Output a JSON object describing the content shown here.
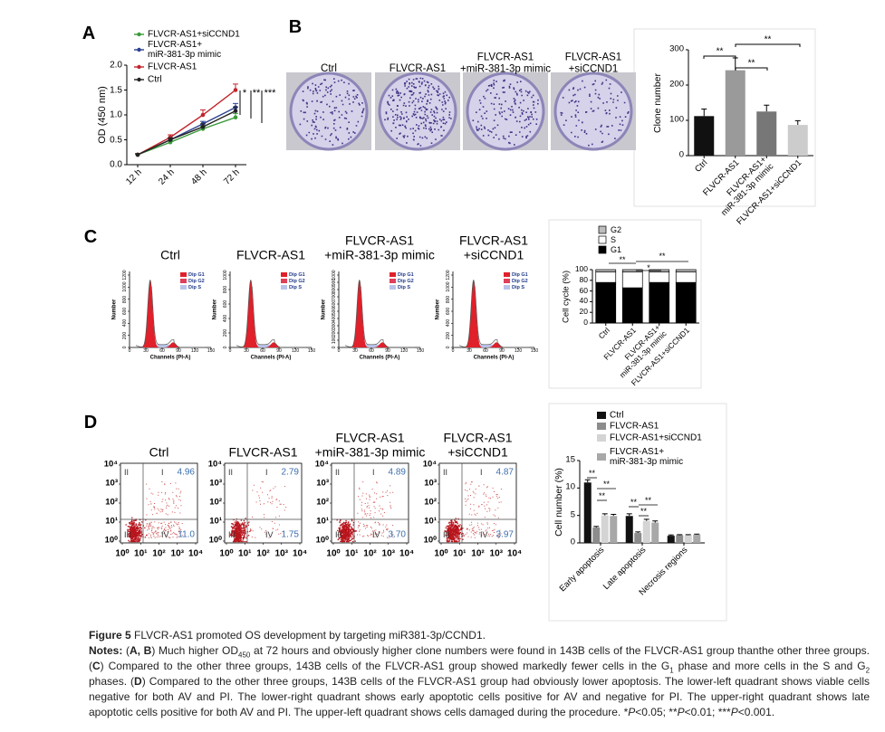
{
  "panel_labels": [
    "A",
    "B",
    "C",
    "D"
  ],
  "chart_data": [
    {
      "type": "line",
      "y_label": "OD (450 nm)",
      "categories": [
        "12 h",
        "24 h",
        "48 h",
        "72 h"
      ],
      "ylim": [
        0,
        2
      ],
      "yticks": [
        {
          "value": 0,
          "label": "0.0"
        },
        0.5,
        {
          "value": 1,
          "label": "1.0"
        },
        1.5,
        {
          "value": 2,
          "label": "2.0"
        }
      ],
      "series": [
        {
          "name": "FLVCR-AS1+siCCND1",
          "color": "#3a9a3a",
          "values": [
            0.2,
            0.45,
            0.72,
            0.95
          ],
          "errors": [
            0.02,
            0.04,
            0.05,
            0.08
          ]
        },
        {
          "name": "FLVCR-AS1+\nmiR-381-3p mimic",
          "color": "#2b3f8f",
          "values": [
            0.2,
            0.5,
            0.82,
            1.15
          ],
          "errors": [
            0.02,
            0.04,
            0.05,
            0.08
          ]
        },
        {
          "name": "FLVCR-AS1",
          "color": "#c0262d",
          "values": [
            0.2,
            0.55,
            1.0,
            1.5
          ],
          "errors": [
            0.02,
            0.05,
            0.1,
            0.12
          ]
        },
        {
          "name": "Ctrl",
          "color": "#222222",
          "values": [
            0.2,
            0.5,
            0.76,
            1.08
          ],
          "errors": [
            0.02,
            0.04,
            0.06,
            0.08
          ]
        }
      ],
      "annotations": [
        "*",
        "**",
        "***"
      ]
    },
    {
      "type": "bar",
      "y_label": "Clone number",
      "categories": [
        "Ctrl",
        "FLVCR-AS1",
        "FLVCR-AS1+\nmiR-381-3p mimic",
        "FLVCR-AS1+siCCND1"
      ],
      "values": [
        112,
        242,
        125,
        87
      ],
      "errors": [
        20,
        35,
        18,
        12
      ],
      "colors": [
        "#111111",
        "#9a9a9a",
        "#777777",
        "#cccccc"
      ],
      "ylim": [
        0,
        300
      ],
      "yticks": [
        0,
        100,
        200,
        300
      ],
      "annotations": [
        "**",
        "**",
        "**"
      ]
    },
    {
      "type": "stacked_bar",
      "y_label": "Cell cycle (%)",
      "categories": [
        "Ctrl",
        "FLVCR-AS1",
        "FLVCR-AS1+\nmiR-381-3p mimic",
        "FLVCR-AS1+siCCND1"
      ],
      "ylim": [
        0,
        100
      ],
      "yticks": [
        0,
        20,
        40,
        60,
        80,
        100
      ],
      "series": [
        {
          "name": "G1",
          "color": "#000000",
          "values": [
            76,
            66,
            76,
            76
          ],
          "errors": [
            7,
            6,
            5,
            6
          ]
        },
        {
          "name": "S",
          "color": "#ffffff",
          "values": [
            20,
            30,
            20,
            20
          ]
        },
        {
          "name": "G2",
          "color": "#bdbdbd",
          "values": [
            4,
            4,
            4,
            4
          ]
        }
      ],
      "annotations": [
        "**",
        "*",
        "**"
      ]
    },
    {
      "type": "grouped_bar",
      "y_label": "Cell number (%)",
      "categories": [
        "Early apoptosis",
        "Late apoptosis",
        "Necrosis regions"
      ],
      "ylim": [
        0,
        15
      ],
      "yticks": [
        0,
        5,
        10,
        15
      ],
      "series": [
        {
          "name": "Ctrl",
          "color": "#111111",
          "values": [
            11,
            4.9,
            1.3
          ],
          "errors": [
            0.5,
            0.4,
            0.15
          ]
        },
        {
          "name": "FLVCR-AS1",
          "color": "#8c8c8c",
          "values": [
            2.8,
            1.8,
            1.4
          ],
          "errors": [
            0.2,
            0.2,
            0.1
          ]
        },
        {
          "name": "FLVCR-AS1+siCCND1",
          "color": "#d4d4d4",
          "values": [
            5.0,
            4.0,
            1.4
          ],
          "errors": [
            0.3,
            0.3,
            0.1
          ]
        },
        {
          "name": "FLVCR-AS1+\nmiR-381-3p mimic",
          "color": "#a8a8a8",
          "values": [
            4.9,
            3.7,
            1.5
          ],
          "errors": [
            0.3,
            0.3,
            0.1
          ]
        }
      ],
      "annotations": [
        "**",
        "**",
        "**",
        "**",
        "**",
        "**"
      ]
    }
  ],
  "colony_images": {
    "labels": [
      "Ctrl",
      "FLVCR-AS1",
      "FLVCR-AS1\n+miR-381-3p mimic",
      "FLVCR-AS1\n+siCCND1"
    ]
  },
  "cell_cycle_histograms": {
    "titles": [
      "Ctrl",
      "FLVCR-AS1",
      "FLVCR-AS1\n+miR-381-3p mimic",
      "FLVCR-AS1\n+siCCND1"
    ],
    "legend": [
      "Dip G1",
      "Dip G2",
      "Dip S"
    ],
    "x_label": "Channels (PI-A)",
    "y_label": "Number",
    "xticks": [
      0,
      30,
      60,
      90,
      120,
      150
    ],
    "yticks": [
      [
        0,
        200,
        400,
        600,
        800,
        1000,
        1200
      ],
      [
        0,
        200,
        400,
        600,
        800,
        1000
      ],
      [
        0,
        100,
        200,
        300,
        400,
        500,
        600,
        700,
        800,
        900,
        1000
      ],
      [
        0,
        200,
        400,
        600,
        800,
        1000,
        1200
      ]
    ]
  },
  "apoptosis_plots": {
    "titles": [
      "Ctrl",
      "FLVCR-AS1",
      "FLVCR-AS1\n+miR-381-3p mimic",
      "FLVCR-AS1\n+siCCND1"
    ],
    "quadrants": [
      "II",
      "I",
      "III",
      "IV"
    ],
    "values": [
      [
        "4.96",
        "11.0"
      ],
      [
        "2.79",
        "1.75"
      ],
      [
        "4.89",
        "3.70"
      ],
      [
        "4.87",
        "3.97"
      ]
    ],
    "ticks": [
      {
        "value": 1,
        "label": "10⁰"
      },
      {
        "value": 10,
        "label": "10¹"
      },
      {
        "value": 100,
        "label": "10²"
      },
      {
        "value": 1000,
        "label": "10³"
      },
      {
        "value": 10000,
        "label": "10⁴"
      }
    ]
  },
  "caption": {
    "title": [
      "Figure 5",
      " FLVCR-AS1 promoted OS development by targeting miR381-3p/CCND1."
    ],
    "notes": [
      "Notes:",
      " (",
      "A, B",
      ") Much higher OD",
      "450",
      " at 72 hours and obviously higher clone numbers were found in 143B cells of the FLVCR-AS1 group thanthe other three groups. (",
      "C",
      ") Compared to the other three groups, 143B cells of the FLVCR-AS1 group showed markedly fewer cells in the G",
      "1",
      " phase and more cells in the S and G",
      "2",
      " phases. (",
      "D",
      ") Compared to the other three groups, 143B cells of the FLVCR-AS1 group had obviously lower apoptosis. The lower-left quadrant shows viable cells negative for both AV and PI. The lower-right quadrant shows early apoptotic cells positive for AV and negative for PI. The upper-right quadrant shows late apoptotic cells positive for both AV and PI. The upper-left quadrant shows cells damaged during the procedure. *",
      "P",
      "<0.05; **",
      "P",
      "<0.01; ***",
      "P",
      "<0.001."
    ]
  }
}
